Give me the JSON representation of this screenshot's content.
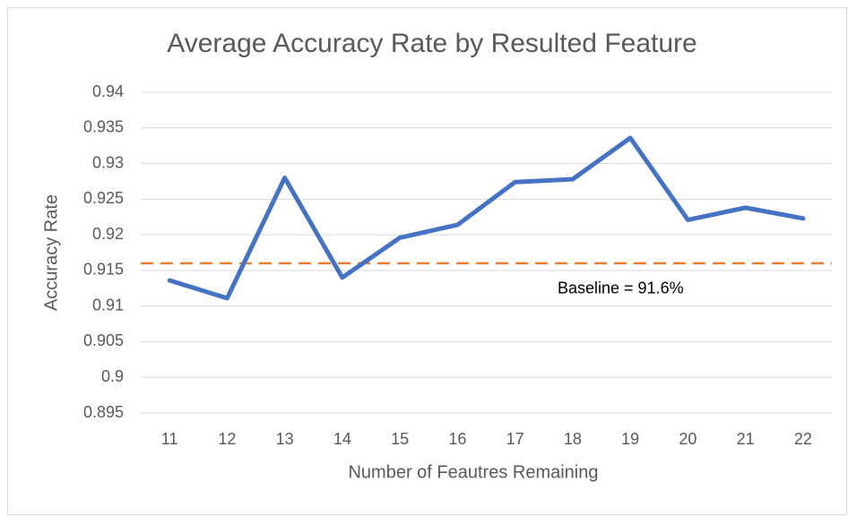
{
  "chart_data": {
    "type": "line",
    "title": "Average Accuracy Rate by Resulted Feature",
    "x_label": "Number of Feautres Remaining",
    "y_label": "Accuracy Rate",
    "categories": [
      "11",
      "12",
      "13",
      "14",
      "15",
      "16",
      "17",
      "18",
      "19",
      "20",
      "21",
      "22"
    ],
    "series": [
      {
        "name": "Accuracy Rate",
        "color": "#4472c4",
        "values": [
          0.9136,
          0.9111,
          0.928,
          0.914,
          0.9196,
          0.9214,
          0.9274,
          0.9278,
          0.9336,
          0.9221,
          0.9238,
          0.9223
        ]
      }
    ],
    "ylim": [
      0.895,
      0.94
    ],
    "yticks": [
      0.895,
      0.9,
      0.905,
      0.91,
      0.915,
      0.92,
      0.925,
      0.93,
      0.935,
      0.94
    ],
    "grid": true,
    "baseline": {
      "value": 0.916,
      "label": "Baseline = 91.6%",
      "color": "#ed7d31"
    }
  }
}
